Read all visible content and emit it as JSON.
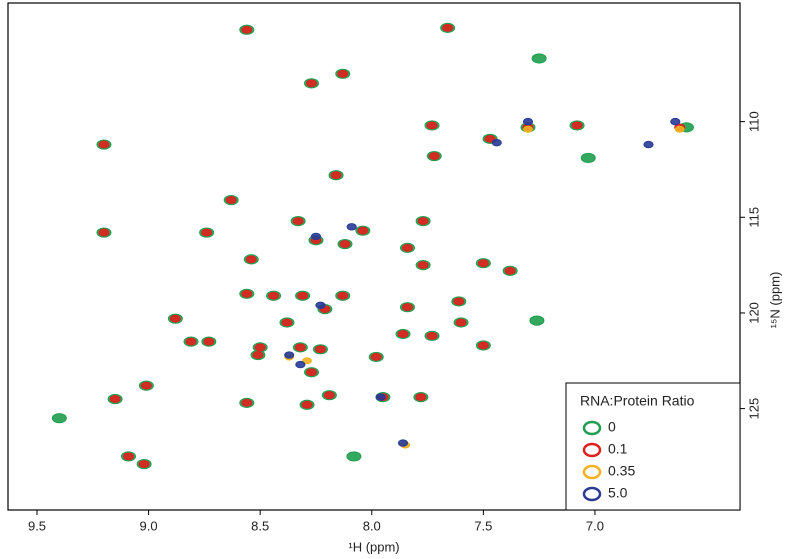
{
  "chart_data": {
    "type": "scatter",
    "xlabel": "¹H (ppm)",
    "ylabel": "¹⁵N (ppm)",
    "xlim": [
      9.63,
      6.35
    ],
    "ylim": [
      103.8,
      130.3
    ],
    "xticks": [
      9.5,
      {
        "value": 9,
        "label": "9.0"
      },
      8.5,
      {
        "value": 8,
        "label": "8.0"
      },
      7.5,
      {
        "value": 7,
        "label": "7.0"
      }
    ],
    "yticks": [
      110,
      115,
      120,
      125
    ],
    "y_axis_side": "right",
    "y_inverted": true,
    "legend": "lower right",
    "legend_title": "RNA:Protein Ratio",
    "series": [
      {
        "name": "0",
        "color": "#1f9e4f",
        "x": [
          8.56,
          7.66,
          7.25,
          8.27,
          8.13,
          9.2,
          7.73,
          7.47,
          7.3,
          7.08,
          6.59,
          7.03,
          7.72,
          8.16,
          8.63,
          9.2,
          8.74,
          8.33,
          8.04,
          7.77,
          8.12,
          8.25,
          8.54,
          7.77,
          7.5,
          7.38,
          8.56,
          8.44,
          8.31,
          8.13,
          8.21,
          7.84,
          7.61,
          8.38,
          7.6,
          7.26,
          8.88,
          8.81,
          8.73,
          8.5,
          8.32,
          8.51,
          8.23,
          7.98,
          8.27,
          7.86,
          7.73,
          7.5,
          9.01,
          9.15,
          8.56,
          8.19,
          8.29,
          7.95,
          7.78,
          9.4,
          9.09,
          9.02,
          8.08,
          7.84
        ],
        "values": [
          105.2,
          105.1,
          106.7,
          108.0,
          107.5,
          111.2,
          110.2,
          110.9,
          110.3,
          110.2,
          110.3,
          111.9,
          111.8,
          112.8,
          114.1,
          115.8,
          115.8,
          115.2,
          115.7,
          115.2,
          116.4,
          116.2,
          117.2,
          117.5,
          117.4,
          117.8,
          119.0,
          119.1,
          119.1,
          119.1,
          119.8,
          119.7,
          119.4,
          120.5,
          120.5,
          120.4,
          120.3,
          121.5,
          121.5,
          121.8,
          121.8,
          122.2,
          121.9,
          122.3,
          123.1,
          121.1,
          121.2,
          121.7,
          123.8,
          124.5,
          124.7,
          124.3,
          124.8,
          124.4,
          124.4,
          125.5,
          127.5,
          127.9,
          127.5,
          116.6
        ]
      },
      {
        "name": "0.1",
        "color": "#e0201e",
        "x": [
          8.56,
          7.66,
          8.27,
          8.13,
          9.2,
          7.73,
          7.47,
          7.3,
          7.08,
          6.62,
          7.72,
          8.16,
          8.63,
          9.2,
          8.74,
          8.33,
          8.04,
          7.77,
          8.12,
          8.25,
          8.54,
          7.77,
          7.5,
          7.38,
          8.56,
          8.44,
          8.31,
          8.13,
          8.21,
          7.84,
          7.61,
          8.38,
          7.6,
          8.88,
          8.81,
          8.73,
          8.5,
          8.32,
          8.51,
          8.23,
          7.98,
          8.27,
          7.86,
          7.73,
          7.5,
          9.01,
          9.15,
          8.56,
          8.19,
          8.29,
          7.95,
          7.78,
          9.09,
          9.02,
          7.84
        ],
        "values": [
          105.2,
          105.1,
          108.0,
          107.5,
          111.2,
          110.2,
          110.9,
          110.3,
          110.2,
          110.3,
          111.8,
          112.8,
          114.1,
          115.8,
          115.8,
          115.2,
          115.7,
          115.2,
          116.4,
          116.2,
          117.2,
          117.5,
          117.4,
          117.8,
          119.0,
          119.1,
          119.1,
          119.1,
          119.8,
          119.7,
          119.4,
          120.5,
          120.5,
          120.3,
          121.5,
          121.5,
          121.8,
          121.8,
          122.2,
          121.9,
          122.3,
          123.1,
          121.1,
          121.2,
          121.7,
          123.8,
          124.5,
          124.7,
          124.3,
          124.8,
          124.4,
          124.4,
          127.5,
          127.9,
          116.6
        ]
      },
      {
        "name": "0.35",
        "color": "#f2b11f",
        "x": [
          7.3,
          6.62,
          8.29,
          7.85,
          8.37
        ],
        "values": [
          110.4,
          110.4,
          122.5,
          126.9,
          122.3
        ]
      },
      {
        "name": "5.0",
        "color": "#283a96",
        "x": [
          7.44,
          7.3,
          6.76,
          6.64,
          8.23,
          8.37,
          8.32,
          7.96,
          7.86,
          8.09,
          8.25
        ],
        "values": [
          111.1,
          110.0,
          111.2,
          110.0,
          119.6,
          122.2,
          122.7,
          124.4,
          126.8,
          115.5,
          116.0
        ]
      }
    ]
  }
}
